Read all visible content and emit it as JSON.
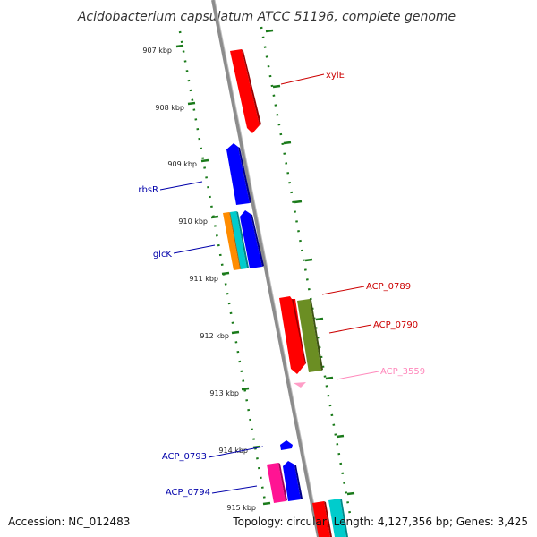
{
  "title": "Acidobacterium capsulatum ATCC 51196, complete genome",
  "tick_labels": [
    "907 kbp",
    "908 kbp",
    "909 kbp",
    "910 kbp",
    "911 kbp",
    "912 kbp",
    "913 kbp",
    "914 kbp",
    "915 kbp"
  ],
  "genes": {
    "xylE": {
      "label": "xylE",
      "color": "#ff0000",
      "label_color": "#cc0000",
      "strand": "reverse"
    },
    "rbsR": {
      "label": "rbsR",
      "color": "#0000ff",
      "label_color": "#0000aa",
      "strand": "forward"
    },
    "glcK": {
      "label": "glcK",
      "color": "#0000ff",
      "label_color": "#0000aa",
      "strand": "forward"
    },
    "glcK_orange": {
      "color": "#ff8c00"
    },
    "glcK_cyan": {
      "color": "#00cccc"
    },
    "ACP_0789": {
      "label": "ACP_0789",
      "color": "#ff0000",
      "label_color": "#cc0000",
      "strand": "reverse"
    },
    "ACP_0790": {
      "label": "ACP_0790",
      "color": "#6b8e23",
      "label_color": "#cc0000",
      "strand": "reverse"
    },
    "ACP_3559": {
      "label": "ACP_3559",
      "color": "#ff9ec7",
      "label_color": "#ff88bb",
      "strand": "reverse"
    },
    "ACP_0793": {
      "label": "ACP_0793",
      "color": "#0000ff",
      "label_color": "#0000aa",
      "strand": "forward"
    },
    "ACP_0794": {
      "label": "ACP_0794",
      "color": "#ff1493",
      "label_color": "#0000aa",
      "strand": "forward"
    }
  },
  "footer": {
    "accession": "Accession: NC_012483",
    "summary": "Topology: circular; Length: 4,127,356 bp; Genes: 3,425"
  },
  "colors": {
    "backbone": "#8c8c8c",
    "ticks": "#1a7a1a",
    "extra_red": "#ff0000",
    "extra_cyan": "#00cccc"
  }
}
